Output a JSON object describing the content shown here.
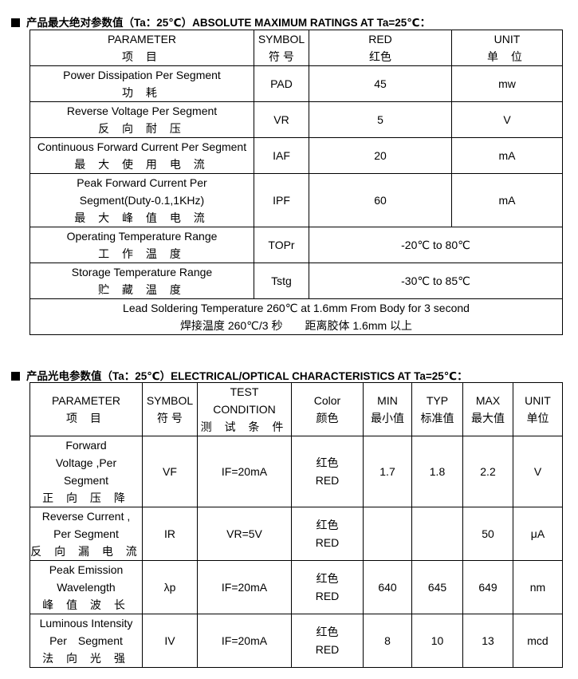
{
  "section1": {
    "title": "产品最大绝对参数值（Ta：25℃）ABSOLUTE MAXIMUM RATINGS AT Ta=25℃：",
    "headers": [
      [
        "PARAMETER",
        "项 目"
      ],
      [
        "SYMBOL",
        "符 号"
      ],
      [
        "RED",
        "红色"
      ],
      [
        "UNIT",
        "单 位"
      ]
    ],
    "rows": [
      {
        "param": "Power Dissipation Per Segment",
        "param_cn": "功 耗",
        "symbol": "PAD",
        "value": "45",
        "unit": "mw"
      },
      {
        "param": "Reverse Voltage Per Segment",
        "param_cn": "反 向 耐 压",
        "symbol": "VR",
        "value": "5",
        "unit": "V"
      },
      {
        "param": "Continuous Forward Current Per Segment",
        "param_cn": "最 大 使 用 电 流",
        "symbol": "IAF",
        "value": "20",
        "unit": "mA"
      },
      {
        "param": "Peak Forward Current Per",
        "param2": "Segment(Duty-0.1,1KHz)",
        "param_cn": "最 大 峰 值 电 流",
        "symbol": "IPF",
        "value": "60",
        "unit": "mA"
      },
      {
        "param": "Operating Temperature Range",
        "param_cn": "工 作 温 度",
        "symbol": "TOPr",
        "value": "-20℃ to 80℃"
      },
      {
        "param": "Storage Temperature Range",
        "param_cn": "贮 藏 温 度",
        "symbol": "Tstg",
        "value": "-30℃ to 85℃"
      }
    ],
    "footer": [
      "Lead Soldering Temperature 260℃ at 1.6mm From Body for 3 second",
      "焊接温度 260℃/3 秒　　距离胶体 1.6mm 以上"
    ]
  },
  "section2": {
    "title": "产品光电参数值（Ta：25℃）ELECTRICAL/OPTICAL CHARACTERISTICS AT Ta=25℃：",
    "headers": [
      [
        "PARAMETER",
        "项 目"
      ],
      [
        "SYMBOL",
        "符 号"
      ],
      [
        "TEST",
        "CONDITION",
        "测 试 条 件"
      ],
      [
        "Color",
        "颜色"
      ],
      [
        "MIN",
        "最小值"
      ],
      [
        "TYP",
        "标准值"
      ],
      [
        "MAX",
        "最大值"
      ],
      [
        "UNIT",
        "单位"
      ]
    ],
    "rows": [
      {
        "param": [
          "Forward",
          "Voltage ,Per",
          "Segment",
          "正 向 压 降"
        ],
        "symbol": "VF",
        "cond": "IF=20mA",
        "color": [
          "红色",
          "RED"
        ],
        "min": "1.7",
        "typ": "1.8",
        "max": "2.2",
        "unit": "V"
      },
      {
        "param": [
          "Reverse Current ,",
          "Per Segment",
          "反 向 漏 电 流"
        ],
        "symbol": "IR",
        "cond": "VR=5V",
        "color": [
          "红色",
          "RED"
        ],
        "min": "",
        "typ": "",
        "max": "50",
        "unit": "μA"
      },
      {
        "param": [
          "Peak Emission",
          "Wavelength",
          "峰 值 波 长"
        ],
        "symbol": "λp",
        "cond": "IF=20mA",
        "color": [
          "红色",
          "RED"
        ],
        "min": "640",
        "typ": "645",
        "max": "649",
        "unit": "nm"
      },
      {
        "param": [
          "Luminous Intensity",
          "Per　Segment",
          "法 向 光 强"
        ],
        "symbol": "IV",
        "cond": "IF=20mA",
        "color": [
          "红色",
          "RED"
        ],
        "min": "8",
        "typ": "10",
        "max": "13",
        "unit": "mcd"
      }
    ]
  }
}
